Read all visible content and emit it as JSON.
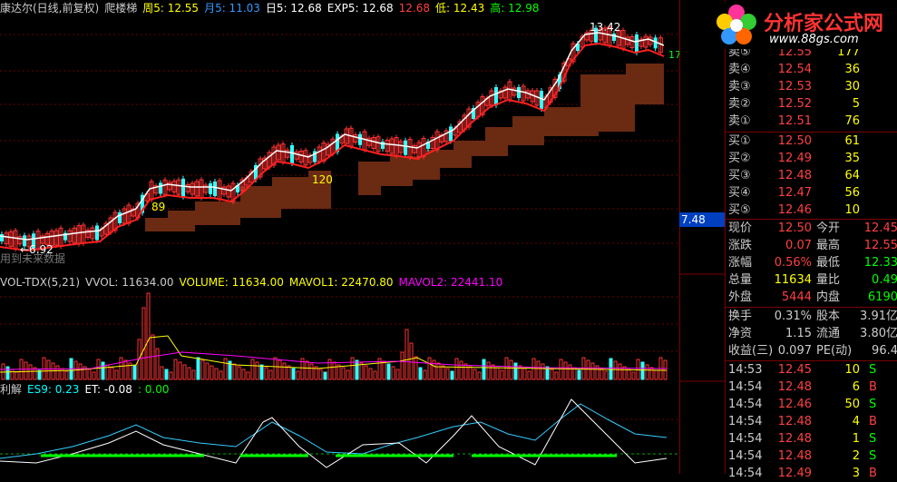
{
  "main": {
    "title": "康达尔(日线,前复权)",
    "indicator": "爬楼梯",
    "ma_items": [
      {
        "label": "周5: 12.55",
        "color": "#ffff00"
      },
      {
        "label": "月5: 11.03",
        "color": "#3399ff"
      },
      {
        "label": "日5: 12.68",
        "color": "#ffffff"
      },
      {
        "label": "EXP5: 12.68",
        "color": "#ffffff"
      },
      {
        "label": "12.68",
        "color": "#ff4040"
      },
      {
        "label": "低: 12.43",
        "color": "#ffff00"
      },
      {
        "label": "高: 12.98",
        "color": "#00ff00"
      }
    ],
    "annotations": {
      "high": "13.42",
      "low": "6.92",
      "mid1": "89",
      "mid2": "120",
      "right": "17"
    },
    "bottom_text": "用到未来数据"
  },
  "volume": {
    "title": "VOL-TDX(5,21)",
    "items": [
      {
        "label": "VVOL: 11634.00",
        "color": "#cccccc"
      },
      {
        "label": "VOLUME: 11634.00",
        "color": "#ffff00"
      },
      {
        "label": "MAVOL1: 22470.80",
        "color": "#ffff00"
      },
      {
        "label": "MAVOL2: 22441.10",
        "color": "#ff00ff"
      }
    ]
  },
  "indicator": {
    "title": "利解",
    "items": [
      {
        "label": "ES9: 0.23",
        "color": "#00ffff"
      },
      {
        "label": "ET: -0.08",
        "color": "#ffffff"
      },
      {
        "label": ": 0.00",
        "color": "#00ff00"
      }
    ]
  },
  "axis": {
    "price_badge": "7.48"
  },
  "quote": {
    "sell": [
      {
        "label": "卖⑤",
        "price": "12.55",
        "vol": "177"
      },
      {
        "label": "卖④",
        "price": "12.54",
        "vol": "36"
      },
      {
        "label": "卖③",
        "price": "12.53",
        "vol": "30"
      },
      {
        "label": "卖②",
        "price": "12.52",
        "vol": "5"
      },
      {
        "label": "卖①",
        "price": "12.51",
        "vol": "76"
      }
    ],
    "buy": [
      {
        "label": "买①",
        "price": "12.50",
        "vol": "61"
      },
      {
        "label": "买②",
        "price": "12.49",
        "vol": "35"
      },
      {
        "label": "买③",
        "price": "12.48",
        "vol": "64"
      },
      {
        "label": "买④",
        "price": "12.47",
        "vol": "56"
      },
      {
        "label": "买⑤",
        "price": "12.46",
        "vol": "10"
      }
    ],
    "stats1": [
      {
        "l1": "现价",
        "v1": "12.50",
        "c1": "#ff4040",
        "l2": "今开",
        "v2": "12.45",
        "c2": "#ff4040"
      },
      {
        "l1": "涨跌",
        "v1": "0.07",
        "c1": "#ff4040",
        "l2": "最高",
        "v2": "12.55",
        "c2": "#ff4040"
      },
      {
        "l1": "涨幅",
        "v1": "0.56%",
        "c1": "#ff4040",
        "l2": "最低",
        "v2": "12.33",
        "c2": "#00ff00"
      },
      {
        "l1": "总量",
        "v1": "11634",
        "c1": "#ffff00",
        "l2": "量比",
        "v2": "0.49",
        "c2": "#00ff00"
      },
      {
        "l1": "外盘",
        "v1": "5444",
        "c1": "#ff4040",
        "l2": "内盘",
        "v2": "6190",
        "c2": "#00ff00"
      }
    ],
    "stats2": [
      {
        "l1": "换手",
        "v1": "0.31%",
        "l2": "股本",
        "v2": "3.91亿"
      },
      {
        "l1": "净资",
        "v1": "1.15",
        "l2": "流通",
        "v2": "3.80亿"
      },
      {
        "l1": "收益(三)",
        "v1": "0.097",
        "l2": "PE(动)",
        "v2": "96.4"
      }
    ],
    "trades": [
      {
        "time": "14:53",
        "price": "12.45",
        "vol": "10",
        "side": "S"
      },
      {
        "time": "14:54",
        "price": "12.48",
        "vol": "6",
        "side": "B"
      },
      {
        "time": "14:54",
        "price": "12.46",
        "vol": "50",
        "side": "S"
      },
      {
        "time": "14:54",
        "price": "12.48",
        "vol": "4",
        "side": "B"
      },
      {
        "time": "14:54",
        "price": "12.48",
        "vol": "1",
        "side": "S"
      },
      {
        "time": "14:54",
        "price": "12.48",
        "vol": "2",
        "side": "S"
      },
      {
        "time": "14:54",
        "price": "12.49",
        "vol": "3",
        "side": "B"
      }
    ]
  },
  "logo": {
    "title": "分析家公式网",
    "url": "www.88gs.com"
  },
  "colors": {
    "up": "#ff3333",
    "down": "#33ffff",
    "grid": "#6a0000",
    "ladder": "#6b2a12"
  }
}
